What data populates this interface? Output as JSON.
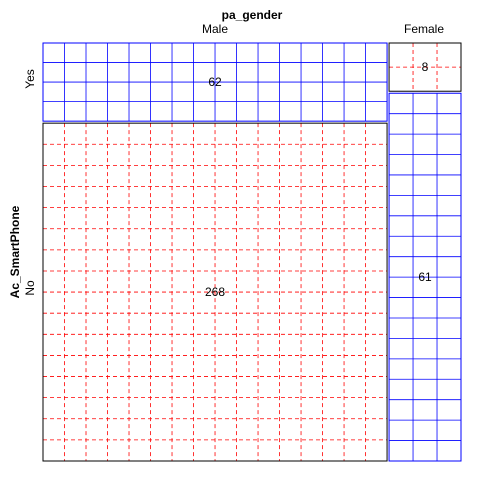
{
  "chart_data": {
    "type": "mosaic",
    "title": "",
    "x_variable": "pa_gender",
    "y_variable": "Ac_SmartPhone",
    "x_categories": [
      "Male",
      "Female"
    ],
    "y_categories": [
      "Yes",
      "No"
    ],
    "cells": [
      {
        "x": "Male",
        "y": "Yes",
        "count": 62,
        "label": "62",
        "residual_sign": "positive"
      },
      {
        "x": "Female",
        "y": "Yes",
        "count": 8,
        "label": "8",
        "residual_sign": "negative"
      },
      {
        "x": "Male",
        "y": "No",
        "count": 268,
        "label": "268",
        "residual_sign": "negative"
      },
      {
        "x": "Female",
        "y": "No",
        "count": 61,
        "label": "61",
        "residual_sign": "positive"
      }
    ],
    "shading": {
      "positive": {
        "color": "#0000ff",
        "line": "solid"
      },
      "negative": {
        "color": "#ff0000",
        "line": "dashed"
      }
    }
  }
}
